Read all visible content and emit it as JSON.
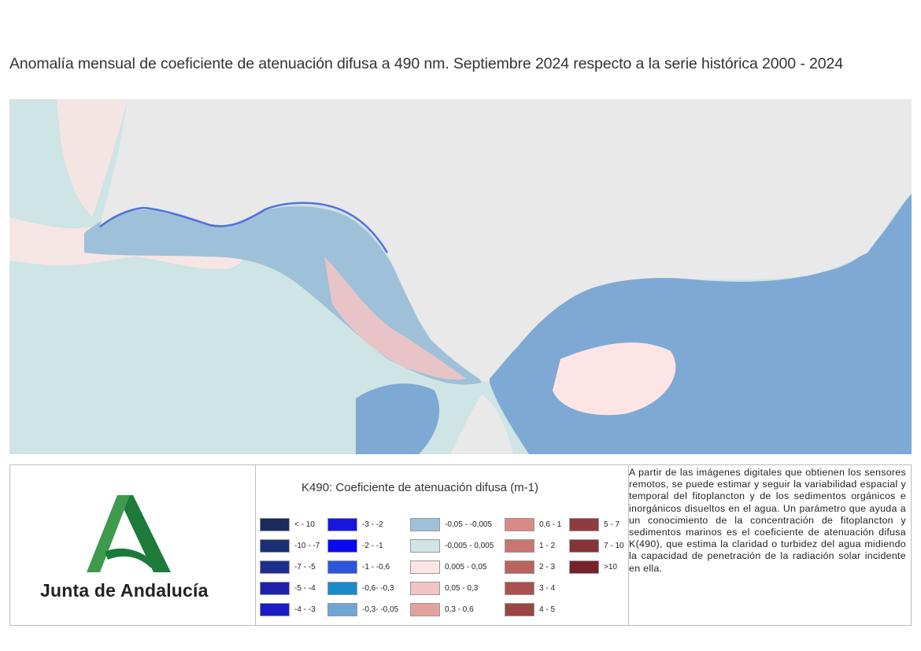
{
  "title": "Anomalía mensual de coeficiente de atenuación difusa a 490 nm. Septiembre 2024 respecto a la serie histórica 2000 - 2024",
  "map": {
    "land_color": "#e9e9e9",
    "sea_base_color": "#cfe4e4"
  },
  "logo": {
    "text": "Junta de Andalucía",
    "green_dark": "#1d7a3a",
    "green_light": "#3e9a4c"
  },
  "legend": {
    "title": "K490: Coeficiente de atenuación difusa (m-1)",
    "items": [
      {
        "label": "< - 10",
        "color": "#1a2b5c"
      },
      {
        "label": "-10 - -7",
        "color": "#1c2f74"
      },
      {
        "label": "-7 - -5",
        "color": "#1e2e8c"
      },
      {
        "label": "-5 - -4",
        "color": "#1f22a8"
      },
      {
        "label": "-4 - -3",
        "color": "#1b1bc8"
      },
      {
        "label": "-3 - -2",
        "color": "#1717dd"
      },
      {
        "label": "-2 - -1",
        "color": "#0a0af0"
      },
      {
        "label": "-1 - -0,6",
        "color": "#2f55df"
      },
      {
        "label": "-0,6- -0,3",
        "color": "#1a8acb"
      },
      {
        "label": "-0,3- -0,05",
        "color": "#70a5d4"
      },
      {
        "label": "-0,05 - -0,005",
        "color": "#9fc0d9"
      },
      {
        "label": "-0,005 - 0,005",
        "color": "#d0e5e5"
      },
      {
        "label": "0,005 - 0,05",
        "color": "#fde5e5"
      },
      {
        "label": "0,05 - 0,3",
        "color": "#f0c4c4"
      },
      {
        "label": "0,3 - 0,6",
        "color": "#e4a29e"
      },
      {
        "label": "0,6 - 1",
        "color": "#d98a86"
      },
      {
        "label": "1 - 2",
        "color": "#c97670"
      },
      {
        "label": "2 - 3",
        "color": "#ba6460"
      },
      {
        "label": "3 - 4",
        "color": "#a9514e"
      },
      {
        "label": "4 - 5",
        "color": "#9c4545"
      },
      {
        "label": "5 - 7",
        "color": "#8e3c3f"
      },
      {
        "label": "7 - 10",
        "color": "#843336"
      },
      {
        "label": ">10",
        "color": "#76222c"
      }
    ]
  },
  "description": "A partir de las imágenes digitales que obtienen los sensores remotos, se puede estimar y seguir la variabilidad espacial y temporal del fitoplancton y de los sedimentos orgánicos e inorgánicos disueltos en el agua. Un parámetro que ayuda a un conocimiento de la concentración de fitoplancton y sedimentos marinos es el coeficiente de atenuación difusa K(490), que estima la claridad o turbidez del agua midiendo la capacidad de penetración de la radiación solar incidente en ella."
}
